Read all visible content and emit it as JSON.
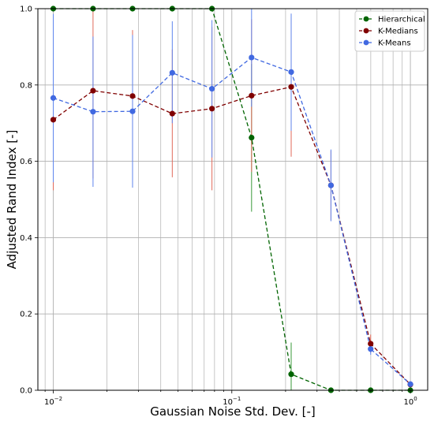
{
  "chart_data": {
    "type": "line",
    "title": "",
    "xlabel": "Gaussian Noise Std. Dev. [-]",
    "ylabel": "Adjusted Rand Index [-]",
    "xscale": "log",
    "xlim": [
      0.0082,
      1.25
    ],
    "ylim": [
      0.0,
      1.0
    ],
    "grid": true,
    "legend_position": "top-right",
    "x": [
      0.01,
      0.0167,
      0.0278,
      0.0464,
      0.0774,
      0.129,
      0.215,
      0.359,
      0.599,
      1.0
    ],
    "yticks": [
      {
        "value": 0.0,
        "label": "0.0"
      },
      {
        "value": 0.2,
        "label": "0.2"
      },
      {
        "value": 0.4,
        "label": "0.4"
      },
      {
        "value": 0.6,
        "label": "0.6"
      },
      {
        "value": 0.8,
        "label": "0.8"
      },
      {
        "value": 1.0,
        "label": "1.0"
      }
    ],
    "xticks": [
      {
        "value": 0.01,
        "base": "10",
        "exp": "−2"
      },
      {
        "value": 0.1,
        "base": "10",
        "exp": "−1"
      },
      {
        "value": 1.0,
        "base": "10",
        "exp": "0"
      }
    ],
    "series": [
      {
        "name": "Hierarchical",
        "color": "#006400",
        "bar_color": "#3a9a3a",
        "values": [
          1.0,
          1.0,
          1.0,
          1.0,
          1.0,
          0.662,
          0.042,
          0.0,
          0.0,
          0.0
        ],
        "err_low": [
          1.0,
          1.0,
          1.0,
          1.0,
          1.0,
          0.468,
          0.0,
          0.0,
          0.0,
          0.0
        ],
        "err_high": [
          1.0,
          1.0,
          1.0,
          1.0,
          1.0,
          0.855,
          0.125,
          0.0,
          0.0,
          0.0
        ]
      },
      {
        "name": "K-Medians",
        "color": "#800000",
        "bar_color": "#e06a5a",
        "values": [
          0.709,
          0.785,
          0.771,
          0.725,
          0.738,
          0.772,
          0.795,
          0.537,
          0.122,
          0.015
        ],
        "err_low": [
          0.524,
          0.555,
          0.598,
          0.558,
          0.524,
          0.572,
          0.612,
          0.445,
          0.098,
          0.008
        ],
        "err_high": [
          0.895,
          1.0,
          0.944,
          0.893,
          0.952,
          0.972,
          0.978,
          0.628,
          0.146,
          0.022
        ]
      },
      {
        "name": "K-Means",
        "color": "#4169e1",
        "bar_color": "#5f86ee",
        "values": [
          0.766,
          0.73,
          0.731,
          0.832,
          0.79,
          0.872,
          0.834,
          0.537,
          0.108,
          0.016
        ],
        "err_low": [
          0.545,
          0.533,
          0.531,
          0.7,
          0.61,
          0.743,
          0.68,
          0.443,
          0.093,
          0.009
        ],
        "err_high": [
          0.986,
          0.927,
          0.931,
          0.967,
          0.97,
          1.0,
          0.987,
          0.631,
          0.124,
          0.023
        ]
      }
    ]
  }
}
